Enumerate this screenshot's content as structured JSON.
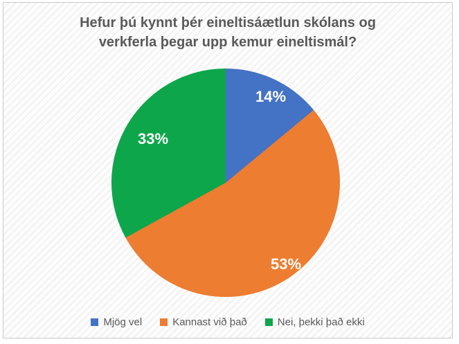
{
  "chart_data": {
    "type": "pie",
    "title": "Hefur þú kynnt þér eineltisáætlun skólans og verkferla þegar upp kemur eineltismál?",
    "title_lines": [
      "Hefur þú kynnt þér eineltisáætlun skólans og",
      "verkferla þegar upp kemur eineltismál?"
    ],
    "categories": [
      "Mjög vel",
      "Kannast við það",
      "Nei, þekki það ekki"
    ],
    "values": [
      14,
      53,
      33
    ],
    "unit": "%",
    "labels": [
      "14%",
      "53%",
      "33%"
    ],
    "colors": [
      "#4472C4",
      "#ED7D31",
      "#0EA64B"
    ],
    "start_angle_deg": 0,
    "direction": "clockwise",
    "legend_position": "bottom"
  },
  "styles": {
    "title_color": "#595959",
    "legend_text_color": "#595959",
    "slice_label_color": "#FFFFFF",
    "frame_border_color": "#C9C9C9"
  }
}
